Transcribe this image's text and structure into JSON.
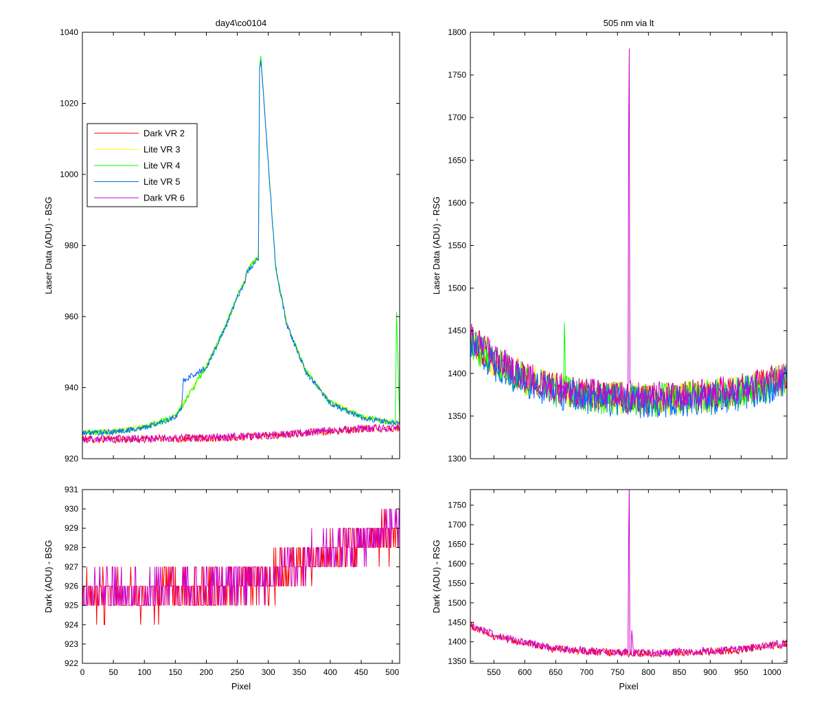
{
  "chart_data": [
    {
      "id": "top-left",
      "type": "line",
      "title": "day4\\co0104",
      "xlabel": "",
      "ylabel": "Laser Data (ADU) - BSG",
      "xlim": [
        0,
        512
      ],
      "ylim": [
        920,
        1040
      ],
      "x_ticks": [
        0,
        50,
        100,
        150,
        200,
        250,
        300,
        350,
        400,
        450,
        500
      ],
      "x_tick_labels_visible": false,
      "y_ticks": [
        920,
        940,
        960,
        980,
        1000,
        1020,
        1040
      ],
      "legend": {
        "placement": "top-left",
        "entries": [
          "Dark VR 2",
          "Lite VR 3",
          "Lite VR 4",
          "Lite VR 5",
          "Dark VR 6"
        ]
      },
      "series": [
        {
          "name": "Dark VR 2",
          "color": "#ff0000",
          "shape": "flat",
          "x": [
            0,
            100,
            200,
            300,
            380,
            450,
            512
          ],
          "y": [
            925.5,
            925.5,
            925.8,
            926.4,
            927.5,
            928.3,
            928.6
          ],
          "noise": 1.1
        },
        {
          "name": "Lite VR 3",
          "color": "#ffff00",
          "shape": "peak",
          "x": [
            0,
            50,
            100,
            150,
            200,
            230,
            250,
            262,
            266,
            284,
            286,
            288,
            312,
            330,
            360,
            400,
            450,
            500,
            512
          ],
          "y": [
            927.5,
            927.8,
            929,
            932,
            946,
            957,
            966,
            970,
            973,
            977,
            1030,
            1033,
            974,
            958,
            945,
            936,
            932,
            930,
            930.5
          ],
          "noise": 0.8
        },
        {
          "name": "Lite VR 4",
          "color": "#00ff00",
          "shape": "peak",
          "x": [
            0,
            50,
            100,
            150,
            200,
            230,
            250,
            262,
            266,
            284,
            286,
            288,
            312,
            330,
            360,
            400,
            450,
            500,
            505,
            507,
            512
          ],
          "y": [
            927.3,
            927.6,
            928.8,
            931.8,
            945.8,
            956.8,
            965.8,
            969.8,
            972.8,
            976.8,
            1029.8,
            1032.8,
            973.8,
            957.8,
            944.8,
            935.8,
            931.8,
            930.2,
            930,
            961,
            930
          ],
          "noise": 0.8
        },
        {
          "name": "Lite VR 5",
          "color": "#0066ff",
          "shape": "peak",
          "x": [
            0,
            50,
            100,
            150,
            160,
            163,
            200,
            230,
            250,
            262,
            266,
            284,
            286,
            288,
            312,
            330,
            360,
            400,
            450,
            500,
            512
          ],
          "y": [
            927.2,
            927.5,
            928.7,
            931.6,
            934,
            942,
            945.6,
            956.6,
            965.6,
            969.6,
            972.6,
            976.6,
            1029.6,
            1032.6,
            973.6,
            957.6,
            944.6,
            935.6,
            931.6,
            930,
            930.2
          ],
          "noise": 0.8
        },
        {
          "name": "Dark VR 6",
          "color": "#cc00cc",
          "shape": "flat",
          "x": [
            0,
            100,
            200,
            300,
            380,
            450,
            512
          ],
          "y": [
            925.6,
            925.6,
            925.9,
            926.5,
            927.6,
            928.4,
            928.7
          ],
          "noise": 1.1
        }
      ]
    },
    {
      "id": "top-right",
      "type": "line",
      "title": "505 nm via lt",
      "xlabel": "",
      "ylabel": "Laser Data (ADU) - RSG",
      "xlim": [
        512,
        1024
      ],
      "ylim": [
        1300,
        1800
      ],
      "x_ticks": [
        550,
        600,
        650,
        700,
        750,
        800,
        850,
        900,
        950,
        1000
      ],
      "x_tick_labels_visible": false,
      "y_ticks": [
        1300,
        1350,
        1400,
        1450,
        1500,
        1550,
        1600,
        1650,
        1700,
        1750,
        1800
      ],
      "series": [
        {
          "name": "Dark VR 2",
          "color": "#ff0000",
          "x": [
            512,
            550,
            600,
            650,
            700,
            750,
            800,
            850,
            900,
            950,
            1000,
            1024
          ],
          "y": [
            1440,
            1415,
            1395,
            1382,
            1375,
            1372,
            1370,
            1372,
            1375,
            1380,
            1390,
            1395
          ],
          "noise": 18
        },
        {
          "name": "Lite VR 3",
          "color": "#ffff00",
          "x": [
            512,
            550,
            600,
            650,
            700,
            750,
            800,
            850,
            900,
            950,
            1000,
            1024
          ],
          "y": [
            1442,
            1416,
            1394,
            1381,
            1374,
            1371,
            1369,
            1371,
            1374,
            1379,
            1389,
            1394
          ],
          "noise": 20
        },
        {
          "name": "Lite VR 4",
          "color": "#00ff00",
          "x": [
            512,
            550,
            600,
            650,
            662,
            664,
            666,
            700,
            750,
            800,
            850,
            900,
            950,
            1000,
            1024
          ],
          "y": [
            1438,
            1413,
            1392,
            1380,
            1378,
            1448,
            1378,
            1373,
            1370,
            1368,
            1370,
            1373,
            1378,
            1388,
            1393
          ],
          "noise": 20
        },
        {
          "name": "Lite VR 5",
          "color": "#0066ff",
          "x": [
            512,
            550,
            600,
            650,
            700,
            750,
            800,
            850,
            900,
            950,
            1000,
            1024
          ],
          "y": [
            1436,
            1411,
            1390,
            1378,
            1371,
            1368,
            1366,
            1368,
            1371,
            1376,
            1386,
            1391
          ],
          "noise": 20
        },
        {
          "name": "Dark VR 6",
          "color": "#cc00cc",
          "x": [
            512,
            550,
            600,
            650,
            700,
            760,
            767,
            768,
            769,
            770,
            776,
            800,
            850,
            900,
            950,
            1000,
            1024
          ],
          "y": [
            1445,
            1418,
            1397,
            1384,
            1377,
            1374,
            1374,
            1665,
            1788,
            1374,
            1374,
            1372,
            1374,
            1377,
            1382,
            1392,
            1397
          ],
          "noise": 18
        }
      ]
    },
    {
      "id": "bottom-left",
      "type": "line",
      "title": "",
      "xlabel": "Pixel",
      "ylabel": "Dark (ADU) - BSG",
      "xlim": [
        0,
        512
      ],
      "ylim": [
        922,
        931
      ],
      "x_ticks": [
        0,
        50,
        100,
        150,
        200,
        250,
        300,
        350,
        400,
        450,
        500
      ],
      "x_tick_labels_visible": true,
      "y_ticks": [
        922,
        923,
        924,
        925,
        926,
        927,
        928,
        929,
        930,
        931
      ],
      "series": [
        {
          "name": "Dark VR 2",
          "color": "#ff0000",
          "x": [
            0,
            100,
            200,
            300,
            380,
            450,
            512
          ],
          "y": [
            925.5,
            925.5,
            925.8,
            926.4,
            927.5,
            928.3,
            928.6
          ],
          "noise": 1.1
        },
        {
          "name": "Dark VR 6",
          "color": "#cc00cc",
          "x": [
            0,
            100,
            200,
            300,
            380,
            450,
            512
          ],
          "y": [
            925.6,
            925.6,
            925.9,
            926.5,
            927.6,
            928.4,
            928.7
          ],
          "noise": 1.1
        }
      ]
    },
    {
      "id": "bottom-right",
      "type": "line",
      "title": "",
      "xlabel": "Pixel",
      "ylabel": "Dark (ADU) - RSG",
      "xlim": [
        512,
        1024
      ],
      "ylim": [
        1345,
        1790
      ],
      "x_ticks": [
        550,
        600,
        650,
        700,
        750,
        800,
        850,
        900,
        950,
        1000
      ],
      "x_tick_labels_visible": true,
      "y_ticks": [
        1350,
        1400,
        1450,
        1500,
        1550,
        1600,
        1650,
        1700,
        1750
      ],
      "series": [
        {
          "name": "Dark VR 2",
          "color": "#ff0000",
          "x": [
            512,
            550,
            600,
            650,
            700,
            750,
            800,
            850,
            900,
            950,
            1000,
            1024
          ],
          "y": [
            1440,
            1415,
            1395,
            1382,
            1375,
            1372,
            1370,
            1372,
            1375,
            1380,
            1390,
            1395
          ],
          "noise": 10
        },
        {
          "name": "Dark VR 6",
          "color": "#cc00cc",
          "x": [
            512,
            550,
            600,
            650,
            700,
            760,
            767,
            768,
            769,
            770,
            772,
            773,
            776,
            800,
            850,
            900,
            950,
            1000,
            1024
          ],
          "y": [
            1445,
            1418,
            1397,
            1384,
            1377,
            1374,
            1374,
            1665,
            1790,
            1374,
            1374,
            1430,
            1374,
            1372,
            1374,
            1377,
            1382,
            1392,
            1397
          ],
          "noise": 10
        }
      ]
    }
  ]
}
